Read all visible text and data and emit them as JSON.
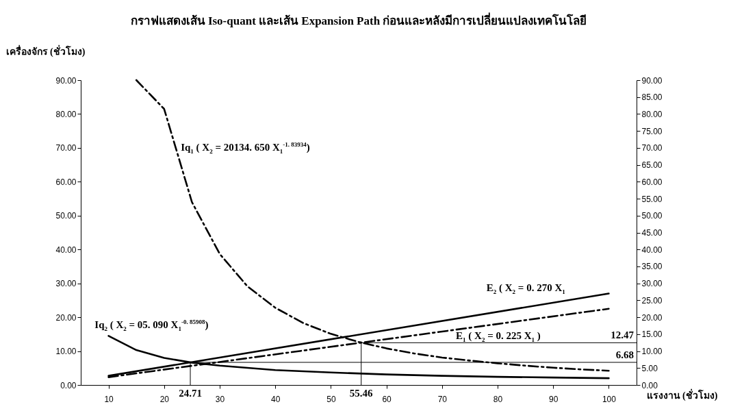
{
  "chart_data": {
    "type": "line",
    "title": "กราฟแสดงเส้น Iso-quant และเส้น Expansion Path ก่อนและหลังมีการเปลี่ยนแปลงเทคโนโลยี",
    "xlabel": "แรงงาน (ชั่วโมง)",
    "ylabel": "เครื่องจักร (ชั่วโมง)",
    "xlim": [
      5,
      105
    ],
    "xticks": [
      10,
      20,
      30,
      40,
      50,
      60,
      70,
      80,
      90,
      100
    ],
    "ylim": [
      0,
      90
    ],
    "yticks": [
      {
        "value": 0,
        "label": "0.00"
      },
      {
        "value": 10,
        "label": "10.00"
      },
      {
        "value": 20,
        "label": "20.00"
      },
      {
        "value": 30,
        "label": "30.00"
      },
      {
        "value": 40,
        "label": "40.00"
      },
      {
        "value": 50,
        "label": "50.00"
      },
      {
        "value": 60,
        "label": "60.00"
      },
      {
        "value": 70,
        "label": "70.00"
      },
      {
        "value": 80,
        "label": "80.00"
      },
      {
        "value": 90,
        "label": "90.00"
      }
    ],
    "y2lim": [
      0,
      90
    ],
    "y2ticks": [
      {
        "value": 0,
        "label": "0.00"
      },
      {
        "value": 5,
        "label": "5.00"
      },
      {
        "value": 10,
        "label": "10.00"
      },
      {
        "value": 15,
        "label": "15.00"
      },
      {
        "value": 20,
        "label": "20.00"
      },
      {
        "value": 25,
        "label": "25.00"
      },
      {
        "value": 30,
        "label": "30.00"
      },
      {
        "value": 35,
        "label": "35.00"
      },
      {
        "value": 40,
        "label": "40.00"
      },
      {
        "value": 45,
        "label": "45.00"
      },
      {
        "value": 50,
        "label": "50.00"
      },
      {
        "value": 55,
        "label": "55.00"
      },
      {
        "value": 60,
        "label": "60.00"
      },
      {
        "value": 65,
        "label": "65.00"
      },
      {
        "value": 70,
        "label": "70.00"
      },
      {
        "value": 75,
        "label": "75.00"
      },
      {
        "value": 80,
        "label": "80.00"
      },
      {
        "value": 85,
        "label": "85.00"
      },
      {
        "value": 90,
        "label": "90.00"
      }
    ],
    "grid": false,
    "series": [
      {
        "color": "#000000",
        "line_style": "dashed",
        "x": [
          15,
          20,
          25,
          30,
          35,
          40,
          45,
          50,
          55,
          60,
          65,
          70,
          75,
          80,
          85,
          90,
          95,
          100
        ],
        "values": [
          90,
          81.5,
          54,
          38.7,
          29.1,
          22.8,
          18.3,
          15.1,
          12.7,
          10.8,
          9.3,
          8.1,
          7.2,
          6.4,
          5.7,
          5.1,
          4.6,
          4.2
        ]
      },
      {
        "color": "#000000",
        "line_style": "solid",
        "x": [
          10,
          15,
          20,
          25,
          30,
          40,
          50,
          60,
          70,
          80,
          90,
          100
        ],
        "values": [
          14.5,
          10.3,
          8,
          6.6,
          5.7,
          4.4,
          3.7,
          3.1,
          2.7,
          2.4,
          2.2,
          2
        ]
      },
      {
        "color": "#000000",
        "line_style": "solid",
        "x": [
          10,
          100
        ],
        "values": [
          2.7,
          27
        ]
      },
      {
        "color": "#000000",
        "line_style": "dashed",
        "x": [
          10,
          100
        ],
        "values": [
          2.3,
          22.5
        ]
      }
    ],
    "ref_lines": [
      {
        "axis": "x",
        "value": 24.71,
        "label": "24.71"
      },
      {
        "axis": "x",
        "value": 55.46,
        "label": "55.46"
      },
      {
        "axis": "y2",
        "value": 6.68,
        "label": "6.68"
      },
      {
        "axis": "y2",
        "value": 12.47,
        "label": "12.47"
      }
    ],
    "annotations": [
      "Iq$_{1}$ ( X$_{2}$ = 20134. 650 X$_{1}$$^{-1. 83934}$)",
      "Iq$_{2}$ ( X$_{2}$ = 05. 090 X$_{1}$$^{-0. 85908}$)",
      "E$_{2}$ ( X$_{2}$ = 0. 270 X$_{1}$",
      "E$_{1}$ ( X$_{2}$ = 0. 225 X$_{1}$ )"
    ]
  }
}
